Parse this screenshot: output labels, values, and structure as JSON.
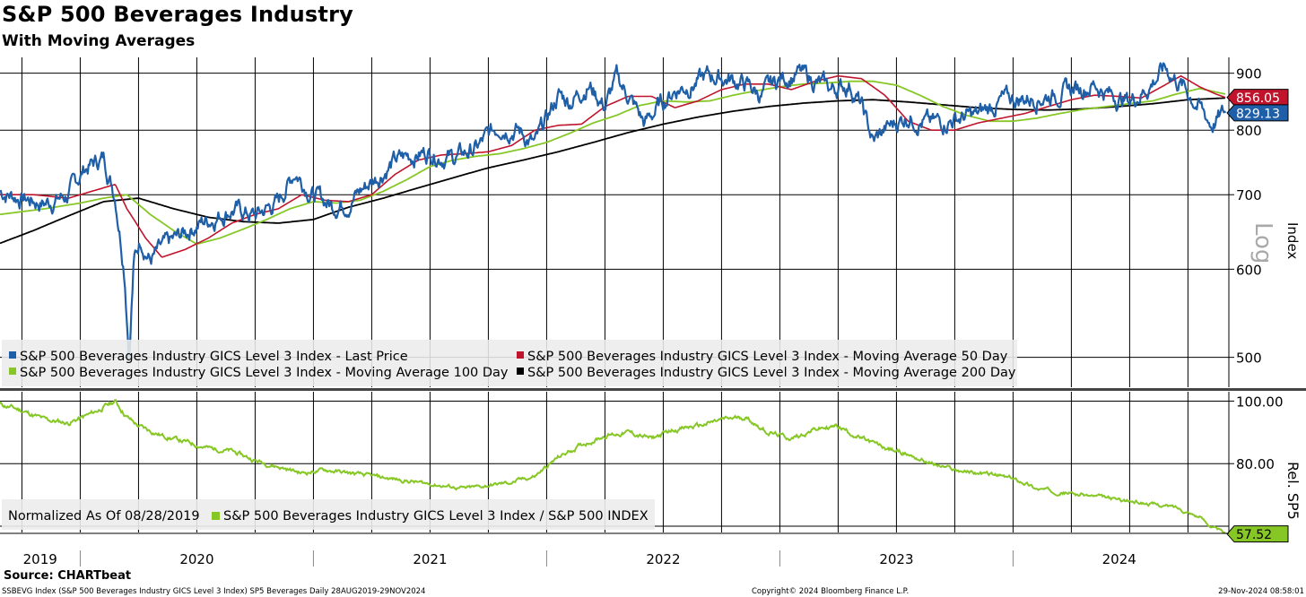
{
  "header": {
    "title": "S&P 500 Beverages Industry",
    "subtitle": "With Moving Averages"
  },
  "colors": {
    "last_price": "#1f5fa8",
    "ma50": "#c0142c",
    "ma100": "#86c726",
    "ma200": "#000000",
    "rel": "#86c726"
  },
  "chart_data": [
    {
      "type": "line",
      "name": "upper-panel",
      "scale": "log",
      "ylabel": "Index",
      "scale_label": "Log",
      "ylim": [
        470,
        930
      ],
      "yticks": [
        500,
        600,
        700,
        800,
        900
      ],
      "ytick_labels": [
        "500",
        "600",
        "700",
        "800",
        "900"
      ],
      "x_range": [
        2019.656,
        2024.91
      ],
      "x_ticks": [
        2020.0,
        2021.0,
        2022.0,
        2023.0,
        2024.0
      ],
      "x_tick_labels": [
        "2019",
        "2020",
        "2021",
        "2022",
        "2023",
        "2024"
      ],
      "last_value_tags": [
        {
          "series": "MA50",
          "label": "856.05",
          "value": 856.05
        },
        {
          "series": "Last Price",
          "label": "829.13",
          "value": 829.13
        }
      ],
      "legend": [
        "S&P 500 Beverages Industry GICS Level 3 Index - Last Price",
        "S&P 500 Beverages Industry GICS Level 3 Index - Moving Average 50 Day",
        "S&P 500 Beverages Industry GICS Level 3 Index - Moving Average 100 Day",
        "S&P 500 Beverages Industry GICS Level 3 Index - Moving Average 200 Day"
      ],
      "series": [
        {
          "name": "Last Price",
          "x": [
            2019.656,
            2019.75,
            2019.85,
            2019.95,
            2020.02,
            2020.1,
            2020.15,
            2020.19,
            2020.21,
            2020.23,
            2020.26,
            2020.3,
            2020.35,
            2020.42,
            2020.48,
            2020.55,
            2020.65,
            2020.75,
            2020.85,
            2020.92,
            2021.0,
            2021.08,
            2021.15,
            2021.25,
            2021.35,
            2021.42,
            2021.5,
            2021.6,
            2021.7,
            2021.8,
            2021.88,
            2021.95,
            2022.05,
            2022.1,
            2022.18,
            2022.25,
            2022.3,
            2022.35,
            2022.42,
            2022.48,
            2022.55,
            2022.62,
            2022.7,
            2022.78,
            2022.85,
            2022.92,
            2023.0,
            2023.08,
            2023.15,
            2023.22,
            2023.3,
            2023.35,
            2023.4,
            2023.45,
            2023.55,
            2023.65,
            2023.75,
            2023.85,
            2023.95,
            2024.05,
            2024.15,
            2024.25,
            2024.35,
            2024.42,
            2024.5,
            2024.58,
            2024.65,
            2024.72,
            2024.78,
            2024.85,
            2024.91
          ],
          "values": [
            705,
            695,
            688,
            700,
            740,
            755,
            700,
            600,
            500,
            610,
            640,
            612,
            625,
            640,
            655,
            665,
            680,
            670,
            690,
            735,
            700,
            685,
            690,
            720,
            750,
            760,
            765,
            755,
            770,
            810,
            800,
            775,
            860,
            850,
            880,
            840,
            890,
            860,
            810,
            840,
            870,
            880,
            895,
            890,
            880,
            860,
            890,
            900,
            885,
            870,
            880,
            840,
            780,
            800,
            825,
            810,
            820,
            825,
            850,
            855,
            860,
            870,
            880,
            860,
            850,
            875,
            910,
            880,
            850,
            810,
            829.13
          ]
        },
        {
          "name": "MA50",
          "x": [
            2019.656,
            2019.8,
            2019.95,
            2020.05,
            2020.15,
            2020.2,
            2020.28,
            2020.35,
            2020.45,
            2020.55,
            2020.65,
            2020.75,
            2020.85,
            2020.95,
            2021.05,
            2021.15,
            2021.25,
            2021.35,
            2021.45,
            2021.55,
            2021.65,
            2021.75,
            2021.85,
            2021.95,
            2022.05,
            2022.15,
            2022.25,
            2022.35,
            2022.45,
            2022.55,
            2022.65,
            2022.75,
            2022.85,
            2022.95,
            2023.05,
            2023.15,
            2023.25,
            2023.35,
            2023.45,
            2023.55,
            2023.65,
            2023.75,
            2023.85,
            2023.95,
            2024.05,
            2024.15,
            2024.25,
            2024.35,
            2024.45,
            2024.55,
            2024.65,
            2024.72,
            2024.8,
            2024.87,
            2024.91
          ],
          "values": [
            700,
            700,
            695,
            705,
            715,
            680,
            640,
            615,
            625,
            640,
            660,
            672,
            680,
            700,
            692,
            690,
            700,
            730,
            752,
            760,
            762,
            765,
            775,
            800,
            808,
            810,
            840,
            858,
            858,
            838,
            850,
            870,
            880,
            880,
            870,
            885,
            895,
            890,
            860,
            815,
            800,
            800,
            812,
            820,
            828,
            840,
            852,
            860,
            858,
            855,
            878,
            895,
            875,
            862,
            856.05
          ]
        },
        {
          "name": "MA100",
          "x": [
            2019.656,
            2019.85,
            2020.0,
            2020.1,
            2020.2,
            2020.3,
            2020.4,
            2020.5,
            2020.6,
            2020.7,
            2020.8,
            2020.9,
            2021.0,
            2021.1,
            2021.2,
            2021.3,
            2021.4,
            2021.5,
            2021.6,
            2021.7,
            2021.8,
            2021.9,
            2022.0,
            2022.1,
            2022.2,
            2022.3,
            2022.4,
            2022.5,
            2022.6,
            2022.7,
            2022.8,
            2022.9,
            2023.0,
            2023.1,
            2023.2,
            2023.3,
            2023.4,
            2023.5,
            2023.6,
            2023.7,
            2023.8,
            2023.9,
            2024.0,
            2024.1,
            2024.2,
            2024.3,
            2024.4,
            2024.5,
            2024.6,
            2024.7,
            2024.8,
            2024.91
          ],
          "values": [
            672,
            680,
            688,
            695,
            700,
            672,
            650,
            632,
            640,
            652,
            665,
            680,
            690,
            688,
            692,
            705,
            722,
            742,
            752,
            758,
            762,
            770,
            780,
            795,
            812,
            825,
            842,
            850,
            848,
            850,
            860,
            868,
            875,
            880,
            882,
            885,
            885,
            878,
            860,
            840,
            825,
            815,
            815,
            820,
            828,
            835,
            840,
            845,
            850,
            862,
            872,
            862
          ]
        },
        {
          "name": "MA200",
          "x": [
            2019.656,
            2019.8,
            2019.95,
            2020.1,
            2020.25,
            2020.4,
            2020.55,
            2020.7,
            2020.85,
            2021.0,
            2021.15,
            2021.3,
            2021.45,
            2021.6,
            2021.75,
            2021.9,
            2022.05,
            2022.2,
            2022.35,
            2022.5,
            2022.65,
            2022.8,
            2022.95,
            2023.1,
            2023.25,
            2023.4,
            2023.55,
            2023.7,
            2023.85,
            2024.0,
            2024.15,
            2024.3,
            2024.45,
            2024.6,
            2024.75,
            2024.91
          ],
          "values": [
            633,
            650,
            670,
            690,
            695,
            680,
            668,
            662,
            660,
            665,
            682,
            695,
            710,
            725,
            740,
            752,
            765,
            780,
            796,
            810,
            822,
            832,
            840,
            846,
            850,
            852,
            848,
            843,
            838,
            835,
            834,
            836,
            840,
            845,
            852,
            855
          ]
        }
      ]
    },
    {
      "type": "line",
      "name": "lower-panel",
      "ylabel": "Rel. SP5",
      "ylim": [
        58,
        103
      ],
      "yticks": [
        80,
        100
      ],
      "ytick_labels": [
        "80.00",
        "100.00"
      ],
      "legend_note": "Normalized As Of 08/28/2019",
      "legend": [
        "S&P 500 Beverages Industry GICS Level 3 Index / S&P 500 INDEX"
      ],
      "last_value_tags": [
        {
          "series": "Rel",
          "label": "57.52",
          "value": 57.52
        }
      ],
      "series": [
        {
          "name": "Rel",
          "x": [
            2019.656,
            2019.75,
            2019.85,
            2019.95,
            2020.05,
            2020.15,
            2020.2,
            2020.25,
            2020.35,
            2020.45,
            2020.55,
            2020.65,
            2020.75,
            2020.85,
            2020.95,
            2021.05,
            2021.15,
            2021.25,
            2021.35,
            2021.45,
            2021.55,
            2021.65,
            2021.75,
            2021.85,
            2021.95,
            2022.05,
            2022.15,
            2022.25,
            2022.35,
            2022.45,
            2022.55,
            2022.65,
            2022.75,
            2022.85,
            2022.95,
            2023.05,
            2023.15,
            2023.25,
            2023.35,
            2023.45,
            2023.55,
            2023.65,
            2023.75,
            2023.85,
            2023.95,
            2024.05,
            2024.1,
            2024.2,
            2024.3,
            2024.4,
            2024.5,
            2024.6,
            2024.7,
            2024.8,
            2024.85,
            2024.91
          ],
          "values": [
            99,
            97,
            94,
            93,
            96,
            100,
            95,
            92,
            89,
            87,
            85,
            84,
            81,
            79,
            77,
            78,
            77,
            76,
            75,
            74,
            73,
            72,
            73,
            74,
            76,
            82,
            86,
            89,
            90,
            88,
            91,
            92,
            94,
            95,
            90,
            88,
            91,
            92,
            88,
            85,
            83,
            80,
            78,
            77,
            76,
            74,
            72,
            71,
            70,
            69,
            68,
            67,
            66,
            63,
            60,
            57.52
          ]
        }
      ]
    }
  ],
  "x_axis": {
    "year_labels": [
      "2019",
      "2020",
      "2021",
      "2022",
      "2023",
      "2024"
    ]
  },
  "footer": {
    "source": "Source: CHARTbeat",
    "left": "SSBEVG Index (S&P 500 Beverages Industry GICS Level 3 Index) SP5 Beverages  Daily 28AUG2019-29NOV2024",
    "center": "Copyright© 2024 Bloomberg Finance L.P.",
    "right": "29-Nov-2024 08:58:01"
  }
}
